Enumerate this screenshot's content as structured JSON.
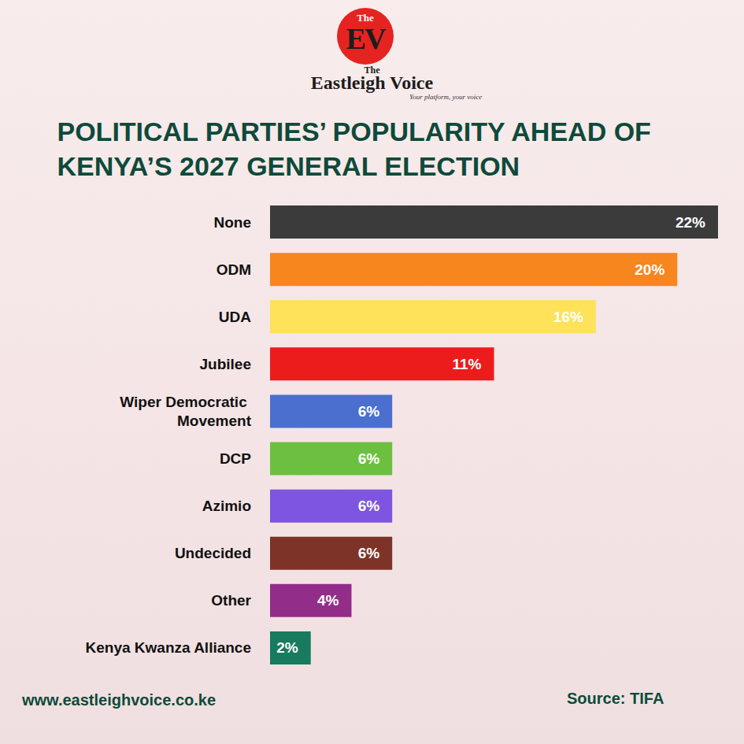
{
  "header": {
    "badge_top": "The",
    "badge": "EV",
    "name_top": "The",
    "name": "Eastleigh Voice",
    "tagline": "Your platform, your voice"
  },
  "chart_data": {
    "type": "bar",
    "orientation": "horizontal",
    "title": "POLITICAL PARTIES’ POPULARITY AHEAD OF KENYA’S 2027 GENERAL ELECTION",
    "categories": [
      "None",
      "ODM",
      "UDA",
      "Jubilee",
      "Wiper Democratic Movement",
      "DCP",
      "Azimio",
      "Undecided",
      "Other",
      "Kenya Kwanza Alliance"
    ],
    "values": [
      22,
      20,
      16,
      11,
      6,
      6,
      6,
      6,
      4,
      2
    ],
    "value_labels": [
      "22%",
      "20%",
      "16%",
      "11%",
      "6%",
      "6%",
      "6%",
      "6%",
      "4%",
      "2%"
    ],
    "colors": [
      "#3b3b3b",
      "#f7861e",
      "#fde25a",
      "#ec1c1c",
      "#4a6fcf",
      "#6cc040",
      "#7d55e0",
      "#7e3328",
      "#922d8a",
      "#187a5e"
    ],
    "xlim": [
      0,
      22
    ],
    "data_labels": true,
    "tick_labels": "y",
    "grid": false
  },
  "footer": {
    "url": "www.eastleighvoice.co.ke",
    "source": "Source: TIFA"
  }
}
